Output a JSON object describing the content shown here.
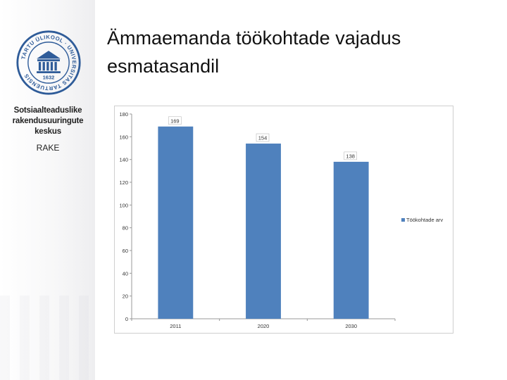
{
  "slide": {
    "title": "Ämmaemanda töökohtade vajadus esmatasandil"
  },
  "sidebar": {
    "logo_text": "UNIVERSITAS TARTUENSIS · TARTU ÜLIKOOL",
    "logo_year": "1632",
    "unit_name": "Sotsiaalteaduslike rakendusuuringute keskus",
    "unit_abbr": "RAKE"
  },
  "colors": {
    "bar": "#4f81bd",
    "accent": "#2f5c99"
  },
  "chart_data": {
    "type": "bar",
    "categories": [
      "2011",
      "2020",
      "2030"
    ],
    "series": [
      {
        "name": "Töökohtade arv",
        "values": [
          169,
          154,
          138
        ]
      }
    ],
    "data_labels": [
      "169",
      "154",
      "138"
    ],
    "y_ticks": [
      "0",
      "20",
      "40",
      "60",
      "80",
      "100",
      "120",
      "140",
      "160",
      "180"
    ],
    "ylim": [
      0,
      180
    ],
    "grid": false,
    "legend_position": "right"
  }
}
